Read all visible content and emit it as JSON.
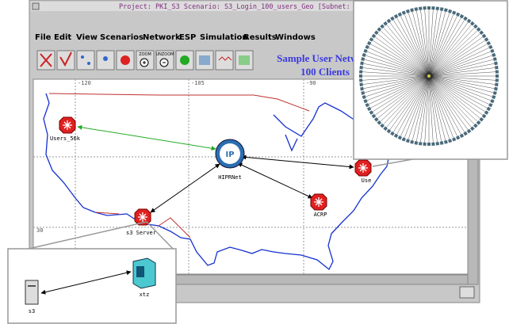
{
  "window": {
    "title": "Project: PKI_S3 Scenario: S3_Login_100_users_Geo  [Subnet:"
  },
  "menu": [
    "File",
    "Edit",
    "View",
    "Scenarios",
    "Network",
    "ESP",
    "Simulation",
    "Results",
    "Windows"
  ],
  "toolbar": [
    "ZOOM",
    "UNZOOM"
  ],
  "annotation": [
    "Sample User Network",
    "100 Clients"
  ],
  "map": {
    "longitudes": [
      "-120",
      "-105",
      "-90"
    ],
    "latitudes": [
      "30"
    ]
  },
  "nodes": [
    {
      "label": "Users_56k"
    },
    {
      "label": "HIPRNet"
    },
    {
      "label": "ACRP"
    },
    {
      "label": "Use"
    },
    {
      "label": "s3 Server"
    }
  ],
  "hub": "IP",
  "inset": {
    "nodes": [
      "s3",
      "xtz"
    ]
  }
}
